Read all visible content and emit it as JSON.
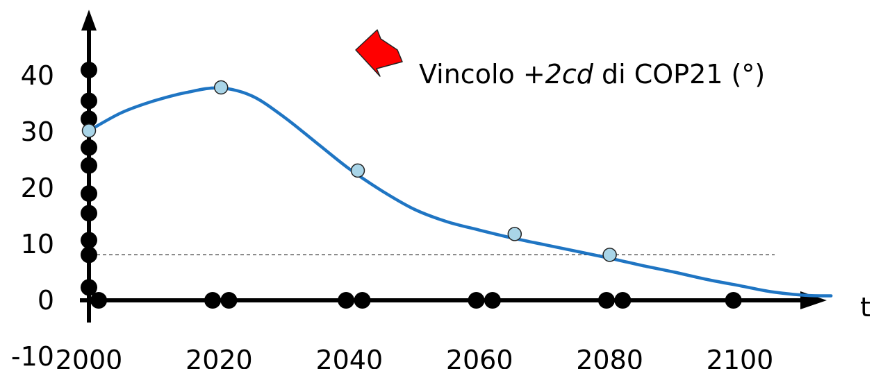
{
  "chart_data": {
    "type": "line",
    "xlabel": "t",
    "ylabel": "",
    "xlim": [
      2000,
      2114
    ],
    "ylim": [
      -10,
      43
    ],
    "x_ticks": [
      2000,
      2020,
      2040,
      2060,
      2080,
      2100
    ],
    "x_tick_labels": [
      "2000",
      "2020",
      "2040",
      "2060",
      "2080",
      "2100"
    ],
    "y_ticks": [
      -10,
      0,
      10,
      20,
      30,
      40
    ],
    "y_tick_labels": [
      "-10",
      "0",
      "10",
      "20",
      "30",
      "40"
    ],
    "series": [
      {
        "color": "#1f75c3",
        "x": [
          2000,
          2005,
          2010,
          2015,
          2020,
          2025,
          2030,
          2035,
          2040,
          2045,
          2050,
          2055,
          2060,
          2065,
          2070,
          2075,
          2080,
          2085,
          2090,
          2095,
          2100,
          2105,
          2110,
          2114
        ],
        "y": [
          30.2,
          33.4,
          35.5,
          37,
          37.8,
          36.4,
          32.6,
          28,
          23.4,
          19.5,
          16.2,
          14,
          12.5,
          11.1,
          9.9,
          8.7,
          7.5,
          6.2,
          5,
          3.7,
          2.6,
          1.5,
          0.9,
          0.8
        ]
      }
    ],
    "highlighted_points": {
      "color": "#a9d5e8",
      "x": [
        2000,
        2020.3,
        2041.3,
        2065.4,
        2080
      ],
      "y": [
        30.2,
        37.9,
        23.1,
        11.8,
        8.1
      ]
    },
    "x_axis_dots": [
      2001.5,
      2019,
      2021.5,
      2039.5,
      2042,
      2059.5,
      2062,
      2079.5,
      2082,
      2099
    ],
    "y_axis_dots": [
      41,
      35.5,
      32.3,
      27.2,
      24,
      19,
      15.5,
      10.7,
      8.1,
      2.3
    ],
    "reference_line": {
      "y": 8.1,
      "style": "dashed"
    },
    "annotation": {
      "prefix": "Vincolo",
      "emphasis": "+2cd",
      "suffix": "di COP21 (°)",
      "marker_color": "#ff0000"
    }
  }
}
